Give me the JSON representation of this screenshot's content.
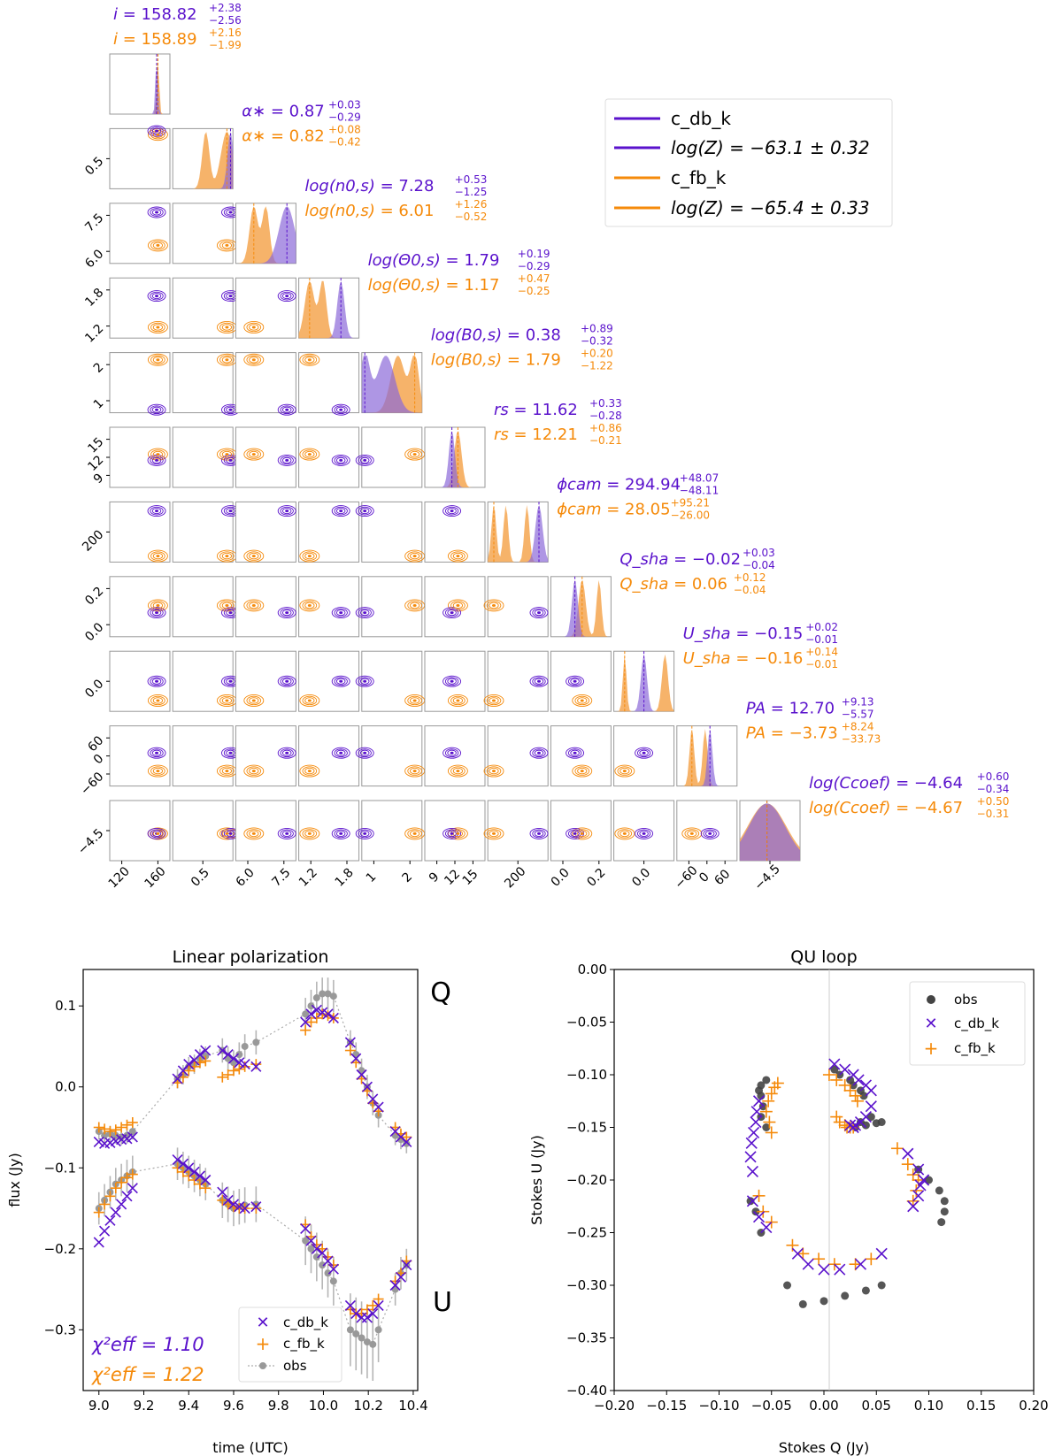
{
  "colors": {
    "purple": "#5a12cc",
    "orange": "#f58a0a",
    "obs": "#444444",
    "axis": "#000000",
    "frame": "#999999",
    "hist_purple_fill": "#8c6ad8",
    "hist_orange_fill": "#f5a650",
    "hist_overlap": "#b8794f"
  },
  "corner": {
    "legend": {
      "items": [
        {
          "label": "c_db_k",
          "color": "purple"
        },
        {
          "label": "log(Z) = −63.1 ± 0.32",
          "color": "purple"
        },
        {
          "label": "c_fb_k",
          "color": "orange"
        },
        {
          "label": "log(Z) = −65.4 ± 0.33",
          "color": "orange"
        }
      ]
    },
    "params": [
      {
        "name": "i",
        "purple": {
          "v": "158.82",
          "up": "+2.38",
          "dn": "−2.56"
        },
        "orange": {
          "v": "158.89",
          "up": "+2.16",
          "dn": "−1.99"
        },
        "ticks": [
          "120",
          "160"
        ],
        "yticks": []
      },
      {
        "name": "α∗",
        "purple": {
          "v": "0.87",
          "up": "+0.03",
          "dn": "−0.29"
        },
        "orange": {
          "v": "0.82",
          "up": "+0.08",
          "dn": "−0.42"
        },
        "ticks": [
          "0.5"
        ],
        "yticks": [
          "0.5"
        ]
      },
      {
        "name": "log(n0,s)",
        "purple": {
          "v": "7.28",
          "up": "+0.53",
          "dn": "−1.25"
        },
        "orange": {
          "v": "6.01",
          "up": "+1.26",
          "dn": "−0.52"
        },
        "ticks": [
          "6.0",
          "7.5"
        ],
        "yticks": [
          "7.5",
          "6.0"
        ]
      },
      {
        "name": "log(Θ0,s)",
        "purple": {
          "v": "1.79",
          "up": "+0.19",
          "dn": "−0.29"
        },
        "orange": {
          "v": "1.17",
          "up": "+0.47",
          "dn": "−0.25"
        },
        "ticks": [
          "1.2",
          "1.8"
        ],
        "yticks": [
          "1.8",
          "1.2"
        ]
      },
      {
        "name": "log(B0,s)",
        "purple": {
          "v": "0.38",
          "up": "+0.89",
          "dn": "−0.32"
        },
        "orange": {
          "v": "1.79",
          "up": "+0.20",
          "dn": "−1.22"
        },
        "ticks": [
          "1",
          "2"
        ],
        "yticks": [
          "2",
          "1"
        ]
      },
      {
        "name": "rs",
        "purple": {
          "v": "11.62",
          "up": "+0.33",
          "dn": "−0.28"
        },
        "orange": {
          "v": "12.21",
          "up": "+0.86",
          "dn": "−0.21"
        },
        "ticks": [
          "9",
          "12",
          "15"
        ],
        "yticks": [
          "15",
          "12",
          "9"
        ]
      },
      {
        "name": "ϕcam",
        "purple": {
          "v": "294.94",
          "up": "+48.07",
          "dn": "−48.11"
        },
        "orange": {
          "v": "28.05",
          "up": "+95.21",
          "dn": "−26.00"
        },
        "ticks": [
          "200"
        ],
        "yticks": [
          "200"
        ]
      },
      {
        "name": "Q_sha",
        "purple": {
          "v": "−0.02",
          "up": "+0.03",
          "dn": "−0.04"
        },
        "orange": {
          "v": "0.06",
          "up": "+0.12",
          "dn": "−0.04"
        },
        "ticks": [
          "0.0",
          "0.2"
        ],
        "yticks": [
          "0.2",
          "0.0"
        ]
      },
      {
        "name": "U_sha",
        "purple": {
          "v": "−0.15",
          "up": "+0.02",
          "dn": "−0.01"
        },
        "orange": {
          "v": "−0.16",
          "up": "+0.14",
          "dn": "−0.01"
        },
        "ticks": [
          "0.0"
        ],
        "yticks": [
          "0.0"
        ]
      },
      {
        "name": "PA",
        "purple": {
          "v": "12.70",
          "up": "+9.13",
          "dn": "−5.57"
        },
        "orange": {
          "v": "−3.73",
          "up": "+8.24",
          "dn": "−33.73"
        },
        "ticks": [
          "−60",
          "0",
          "60"
        ],
        "yticks": [
          "60",
          "0",
          "−60"
        ]
      },
      {
        "name": "log(Ccoef)",
        "purple": {
          "v": "−4.64",
          "up": "+0.60",
          "dn": "−0.34"
        },
        "orange": {
          "v": "−4.67",
          "up": "+0.50",
          "dn": "−0.31"
        },
        "ticks": [
          "−4.5"
        ],
        "yticks": [
          "−4.5"
        ]
      }
    ]
  },
  "chart_data": [
    {
      "type": "scatter",
      "title": "Linear polarization",
      "xlabel": "time (UTC)",
      "ylabel": "flux (Jy)",
      "xlim": [
        8.93,
        10.42
      ],
      "ylim": [
        -0.375,
        0.145
      ],
      "xticks": [
        "9.0",
        "9.2",
        "9.4",
        "9.6",
        "9.8",
        "10.0",
        "10.2",
        "10.4"
      ],
      "yticks": [
        "0.1",
        "0.0",
        "−0.1",
        "−0.2",
        "−0.3"
      ],
      "annotations": [
        "Q",
        "U"
      ],
      "chi2": [
        "χ²eff = 1.10",
        "χ²eff = 1.22"
      ],
      "legend": [
        "c_db_k",
        "c_fb_k",
        "obs"
      ],
      "x": [
        9.0,
        9.025,
        9.05,
        9.075,
        9.1,
        9.125,
        9.15,
        9.35,
        9.375,
        9.4,
        9.425,
        9.45,
        9.475,
        9.55,
        9.575,
        9.6,
        9.625,
        9.65,
        9.7,
        9.92,
        9.945,
        9.97,
        9.995,
        10.02,
        10.045,
        10.12,
        10.145,
        10.17,
        10.195,
        10.22,
        10.245,
        10.32,
        10.345,
        10.37
      ],
      "series": [
        {
          "name": "obs Q",
          "values": [
            -0.055,
            -0.06,
            -0.058,
            -0.06,
            -0.062,
            -0.06,
            -0.055,
            0.01,
            0.015,
            0.025,
            0.028,
            0.035,
            0.038,
            0.045,
            0.035,
            0.03,
            0.04,
            0.05,
            0.055,
            0.09,
            0.1,
            0.11,
            0.115,
            0.115,
            0.112,
            0.055,
            0.04,
            0.02,
            0.0,
            -0.02,
            -0.035,
            -0.06,
            -0.065,
            -0.07
          ],
          "err": [
            0.01,
            0.01,
            0.01,
            0.01,
            0.01,
            0.01,
            0.01,
            0.012,
            0.012,
            0.012,
            0.012,
            0.012,
            0.012,
            0.015,
            0.015,
            0.015,
            0.015,
            0.015,
            0.015,
            0.02,
            0.02,
            0.02,
            0.02,
            0.02,
            0.02,
            0.015,
            0.015,
            0.015,
            0.015,
            0.015,
            0.015,
            0.012,
            0.012,
            0.012
          ]
        },
        {
          "name": "obs U",
          "values": [
            -0.15,
            -0.14,
            -0.13,
            -0.12,
            -0.115,
            -0.11,
            -0.105,
            -0.095,
            -0.1,
            -0.105,
            -0.11,
            -0.115,
            -0.12,
            -0.14,
            -0.145,
            -0.15,
            -0.148,
            -0.146,
            -0.145,
            -0.19,
            -0.2,
            -0.21,
            -0.22,
            -0.23,
            -0.24,
            -0.3,
            -0.305,
            -0.31,
            -0.315,
            -0.318,
            -0.3,
            -0.25,
            -0.23,
            -0.22
          ],
          "err": [
            0.02,
            0.02,
            0.02,
            0.02,
            0.02,
            0.02,
            0.02,
            0.02,
            0.02,
            0.02,
            0.02,
            0.02,
            0.02,
            0.022,
            0.022,
            0.022,
            0.022,
            0.022,
            0.022,
            0.03,
            0.03,
            0.03,
            0.03,
            0.03,
            0.03,
            0.045,
            0.045,
            0.045,
            0.045,
            0.045,
            0.04,
            0.02,
            0.02,
            0.02
          ]
        },
        {
          "name": "c_db_k Q",
          "values": [
            -0.068,
            -0.07,
            -0.069,
            -0.067,
            -0.065,
            -0.064,
            -0.062,
            0.01,
            0.02,
            0.028,
            0.033,
            0.04,
            0.045,
            0.045,
            0.04,
            0.035,
            0.03,
            0.028,
            0.025,
            0.08,
            0.09,
            0.095,
            0.092,
            0.09,
            0.085,
            0.055,
            0.035,
            0.015,
            0.0,
            -0.015,
            -0.025,
            -0.055,
            -0.062,
            -0.068
          ]
        },
        {
          "name": "c_db_k U",
          "values": [
            -0.192,
            -0.178,
            -0.165,
            -0.155,
            -0.145,
            -0.135,
            -0.125,
            -0.09,
            -0.095,
            -0.1,
            -0.105,
            -0.11,
            -0.115,
            -0.13,
            -0.14,
            -0.145,
            -0.148,
            -0.15,
            -0.148,
            -0.175,
            -0.19,
            -0.2,
            -0.205,
            -0.215,
            -0.225,
            -0.27,
            -0.28,
            -0.285,
            -0.285,
            -0.28,
            -0.27,
            -0.245,
            -0.235,
            -0.22
          ]
        },
        {
          "name": "c_fb_k Q",
          "values": [
            -0.05,
            -0.052,
            -0.055,
            -0.053,
            -0.05,
            -0.047,
            -0.044,
            0.005,
            0.012,
            0.02,
            0.025,
            0.03,
            0.032,
            0.012,
            0.015,
            0.02,
            0.022,
            0.025,
            0.028,
            0.07,
            0.08,
            0.085,
            0.09,
            0.088,
            0.085,
            0.045,
            0.03,
            0.01,
            -0.005,
            -0.02,
            -0.03,
            -0.05,
            -0.058,
            -0.062
          ]
        },
        {
          "name": "c_fb_k U",
          "values": [
            -0.155,
            -0.145,
            -0.135,
            -0.125,
            -0.118,
            -0.112,
            -0.108,
            -0.1,
            -0.105,
            -0.11,
            -0.115,
            -0.12,
            -0.125,
            -0.14,
            -0.145,
            -0.148,
            -0.15,
            -0.15,
            -0.15,
            -0.17,
            -0.185,
            -0.195,
            -0.2,
            -0.21,
            -0.22,
            -0.275,
            -0.28,
            -0.28,
            -0.275,
            -0.27,
            -0.262,
            -0.24,
            -0.23,
            -0.215
          ]
        }
      ]
    },
    {
      "type": "scatter",
      "title": "QU loop",
      "xlabel": "Stokes Q (Jy)",
      "ylabel": "Stokes U (Jy)",
      "xlim": [
        -0.2,
        0.2
      ],
      "ylim": [
        -0.4,
        0.0
      ],
      "xticks": [
        "−0.20",
        "−0.15",
        "−0.10",
        "−0.05",
        "0.00",
        "0.05",
        "0.10",
        "0.15",
        "0.20"
      ],
      "yticks": [
        "0.00",
        "−0.05",
        "−0.10",
        "−0.15",
        "−0.20",
        "−0.25",
        "−0.30",
        "−0.35",
        "−0.40"
      ],
      "legend": [
        "obs",
        "c_db_k",
        "c_fb_k"
      ]
    }
  ]
}
